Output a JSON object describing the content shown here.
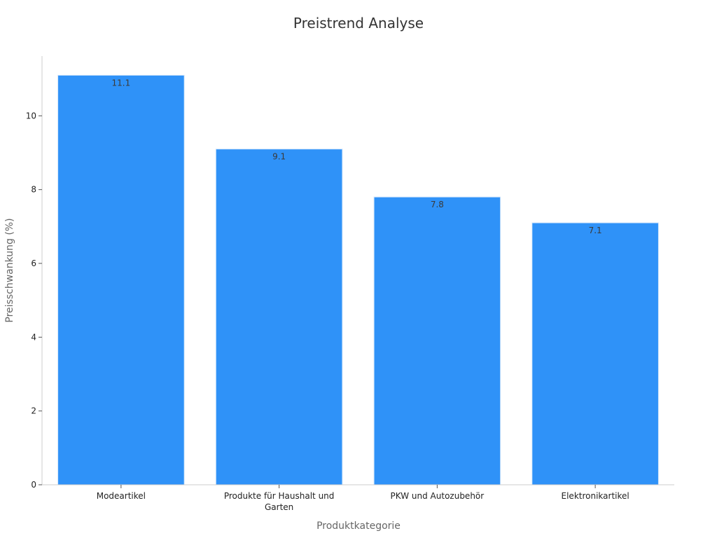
{
  "chart_data": {
    "type": "bar",
    "title": "Preistrend Analyse",
    "xlabel": "Produktkategorie",
    "ylabel": "Preisschwankung (%)",
    "categories": [
      "Modeartikel",
      "Produkte für Haushalt und Garten",
      "PKW und Autozubehör",
      "Elektronikartikel"
    ],
    "category_lines": [
      [
        "Modeartikel"
      ],
      [
        "Produkte für Haushalt und",
        "Garten"
      ],
      [
        "PKW und Autozubehör"
      ],
      [
        "Elektronikartikel"
      ]
    ],
    "values": [
      11.1,
      9.1,
      7.8,
      7.1
    ],
    "data_labels": [
      "11.1",
      "9.1",
      "7.8",
      "7.1"
    ],
    "ylim": [
      0,
      11.62
    ],
    "yticks": [
      0,
      2,
      4,
      6,
      8,
      10
    ],
    "grid": false,
    "legend": "none",
    "bar_color": "#2f92f8"
  }
}
